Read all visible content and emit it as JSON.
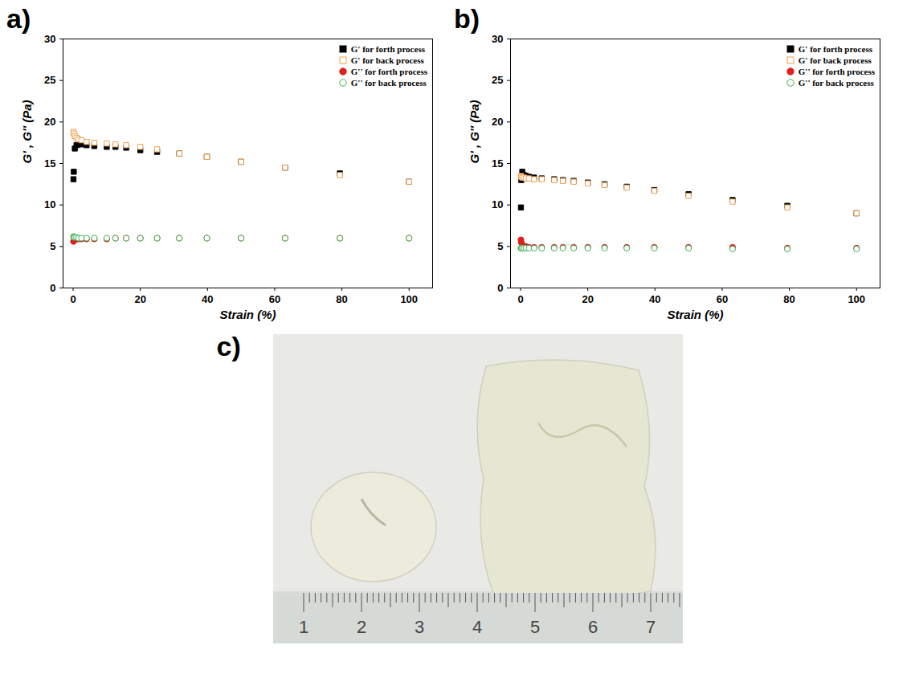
{
  "chart_data": [
    {
      "type": "scatter",
      "panel": "a)",
      "x_label": "Strain (%)",
      "y_label": "G' , G'' (Pa)",
      "x": [
        0.1,
        0.2,
        0.5,
        1,
        1.6,
        2.5,
        4,
        6.3,
        10,
        12.6,
        15.8,
        20,
        25,
        31.6,
        39.8,
        50,
        63.1,
        79.4,
        100
      ],
      "series": [
        {
          "name": "G' for forth process",
          "color": "#000000",
          "marker": "square",
          "values": [
            13.1,
            14.0,
            16.8,
            17.2,
            17.3,
            17.3,
            17.2,
            17.1,
            17.0,
            17.0,
            16.9,
            16.6,
            16.4,
            16.2,
            15.8,
            15.2,
            14.5,
            13.8,
            12.8
          ]
        },
        {
          "name": "G' for back process",
          "color": "#f0a050",
          "marker": "open-square",
          "values": [
            18.8,
            18.6,
            18.3,
            18.1,
            17.9,
            17.8,
            17.6,
            17.5,
            17.4,
            17.3,
            17.2,
            17.0,
            16.7,
            16.2,
            15.8,
            15.2,
            14.5,
            13.6,
            12.8
          ]
        },
        {
          "name": "G'' for forth process",
          "color": "#e02020",
          "marker": "circle",
          "values": [
            5.6,
            5.7,
            5.8,
            5.9,
            5.9,
            5.9,
            5.9,
            5.9,
            5.9,
            6.0,
            6.0,
            6.0,
            6.0,
            6.0,
            6.0,
            6.0,
            6.0,
            6.0,
            6.0
          ]
        },
        {
          "name": "G'' for back process",
          "color": "#3cb050",
          "marker": "open-circle",
          "values": [
            6.2,
            6.1,
            6.1,
            6.1,
            6.0,
            6.0,
            6.0,
            6.0,
            6.0,
            6.0,
            6.0,
            6.0,
            6.0,
            6.0,
            6.0,
            6.0,
            6.0,
            6.0,
            6.0
          ]
        }
      ],
      "xlim": [
        -3,
        107
      ],
      "ylim": [
        0,
        30
      ],
      "xticks": [
        0,
        20,
        40,
        60,
        80,
        100
      ],
      "yticks": [
        0,
        5,
        10,
        15,
        20,
        25,
        30
      ],
      "legend": "top-right"
    },
    {
      "type": "scatter",
      "panel": "b)",
      "x_label": "Strain (%)",
      "y_label": "G' , G'' (Pa)",
      "x": [
        0.1,
        0.2,
        0.5,
        1,
        1.6,
        2.5,
        4,
        6.3,
        10,
        12.6,
        15.8,
        20,
        25,
        31.6,
        39.8,
        50,
        63.1,
        79.4,
        100
      ],
      "series": [
        {
          "name": "G' for forth process",
          "color": "#000000",
          "marker": "square",
          "values": [
            9.7,
            13.0,
            14.0,
            13.6,
            13.5,
            13.4,
            13.3,
            13.2,
            13.1,
            13.0,
            12.9,
            12.7,
            12.5,
            12.2,
            11.8,
            11.3,
            10.6,
            9.9,
            9.0
          ]
        },
        {
          "name": "G' for back process",
          "color": "#f0a050",
          "marker": "open-square",
          "values": [
            13.5,
            13.4,
            13.3,
            13.3,
            13.2,
            13.2,
            13.1,
            13.1,
            13.0,
            12.9,
            12.8,
            12.6,
            12.4,
            12.1,
            11.7,
            11.1,
            10.4,
            9.7,
            9.0
          ]
        },
        {
          "name": "G'' for forth process",
          "color": "#e02020",
          "marker": "circle",
          "values": [
            5.8,
            5.5,
            5.2,
            5.0,
            5.0,
            4.9,
            4.9,
            4.9,
            4.9,
            4.9,
            4.9,
            4.9,
            4.9,
            4.9,
            4.9,
            4.9,
            4.9,
            4.8,
            4.8
          ]
        },
        {
          "name": "G'' for back process",
          "color": "#3cb050",
          "marker": "open-circle",
          "values": [
            4.8,
            4.8,
            4.8,
            4.8,
            4.8,
            4.8,
            4.8,
            4.8,
            4.8,
            4.8,
            4.8,
            4.8,
            4.8,
            4.8,
            4.8,
            4.8,
            4.7,
            4.7,
            4.7
          ]
        }
      ],
      "xlim": [
        -3,
        107
      ],
      "ylim": [
        0,
        30
      ],
      "xticks": [
        0,
        20,
        40,
        60,
        80,
        100
      ],
      "yticks": [
        0,
        5,
        10,
        15,
        20,
        25,
        30
      ],
      "legend": "top-right"
    }
  ],
  "photo": {
    "panel": "c)",
    "ruler_labels": [
      "1",
      "2",
      "3",
      "4",
      "5",
      "6",
      "7"
    ]
  }
}
